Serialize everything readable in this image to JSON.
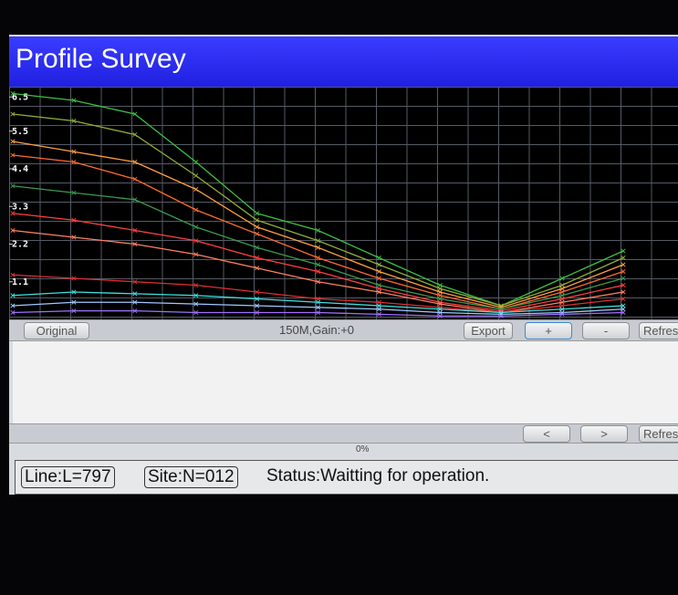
{
  "header": {
    "title": "Profile Survey"
  },
  "chart_data": {
    "type": "line",
    "ylim": [
      0,
      6.8
    ],
    "yticks": [
      6.5,
      5.5,
      4.4,
      3.3,
      2.2,
      1.1
    ],
    "grid": true,
    "series": [
      {
        "color": "#3cc043",
        "values": [
          6.6,
          6.4,
          6.0,
          4.6,
          3.1,
          2.6,
          1.8,
          1.0,
          0.4,
          1.2,
          2.0
        ]
      },
      {
        "color": "#8fae3a",
        "values": [
          6.0,
          5.8,
          5.4,
          4.2,
          2.9,
          2.3,
          1.6,
          0.9,
          0.4,
          1.0,
          1.8
        ]
      },
      {
        "color": "#ffa040",
        "values": [
          5.2,
          4.9,
          4.6,
          3.8,
          2.7,
          2.1,
          1.4,
          0.8,
          0.35,
          0.9,
          1.6
        ]
      },
      {
        "color": "#ff6a30",
        "values": [
          4.8,
          4.6,
          4.1,
          3.2,
          2.5,
          1.8,
          1.2,
          0.7,
          0.3,
          0.8,
          1.4
        ]
      },
      {
        "color": "#3a9a50",
        "values": [
          3.9,
          3.7,
          3.5,
          2.7,
          2.1,
          1.6,
          1.0,
          0.6,
          0.3,
          0.7,
          1.2
        ]
      },
      {
        "color": "#ff4040",
        "values": [
          3.1,
          2.9,
          2.6,
          2.3,
          1.8,
          1.4,
          0.9,
          0.5,
          0.25,
          0.6,
          1.0
        ]
      },
      {
        "color": "#ff8060",
        "values": [
          2.6,
          2.4,
          2.2,
          1.9,
          1.5,
          1.1,
          0.8,
          0.45,
          0.2,
          0.5,
          0.8
        ]
      },
      {
        "color": "#e03030",
        "values": [
          1.3,
          1.2,
          1.1,
          1.0,
          0.8,
          0.6,
          0.5,
          0.35,
          0.2,
          0.4,
          0.6
        ]
      },
      {
        "color": "#40e0e0",
        "values": [
          0.7,
          0.8,
          0.75,
          0.7,
          0.6,
          0.5,
          0.4,
          0.3,
          0.2,
          0.3,
          0.4
        ]
      },
      {
        "color": "#a0c8ff",
        "values": [
          0.4,
          0.5,
          0.5,
          0.45,
          0.4,
          0.35,
          0.3,
          0.2,
          0.15,
          0.2,
          0.3
        ]
      },
      {
        "color": "#a070ff",
        "values": [
          0.2,
          0.25,
          0.25,
          0.2,
          0.2,
          0.2,
          0.15,
          0.1,
          0.1,
          0.15,
          0.2
        ]
      }
    ]
  },
  "toolbar": {
    "original": "Original",
    "info": "150M,Gain:+0",
    "export": "Export",
    "plus": "+",
    "minus": "-",
    "refresh": "Refres"
  },
  "nav": {
    "prev": "<",
    "next": ">",
    "refresh": "Refres"
  },
  "progress": "0%",
  "status": {
    "line": "Line:L=797",
    "site": "Site:N=012",
    "message": "Status:Waitting for operation."
  }
}
